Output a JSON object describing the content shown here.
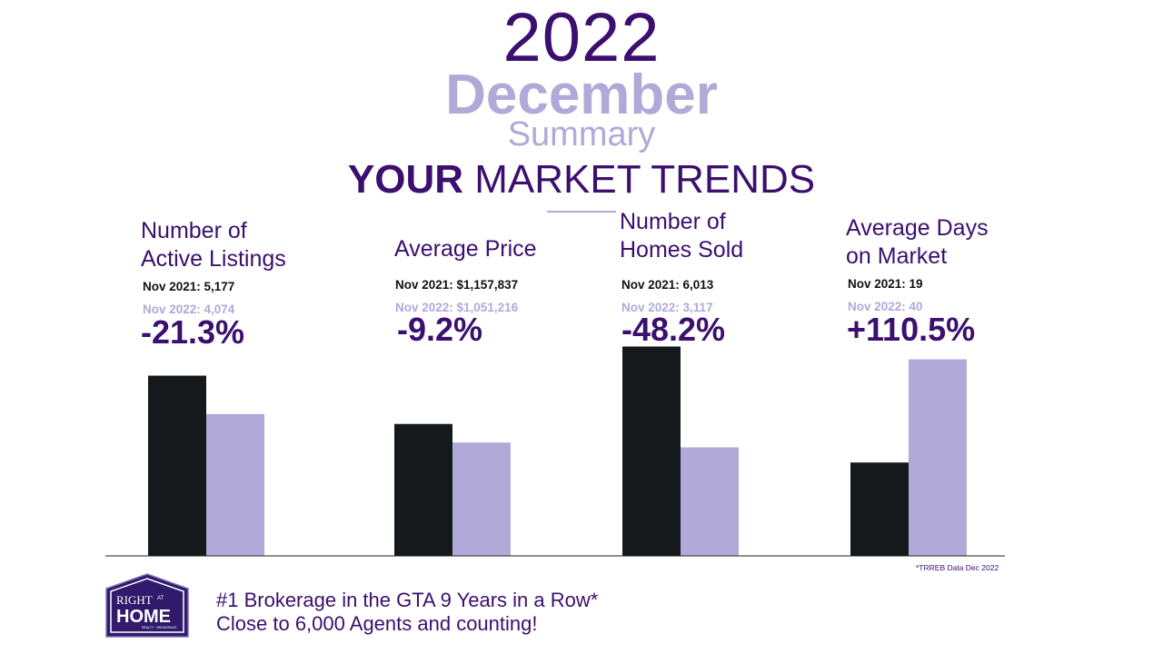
{
  "header": {
    "year": "2022",
    "month": "December",
    "subtitle": "Summary",
    "trends_bold": "YOUR",
    "trends_rest": "MARKET TRENDS"
  },
  "chart_data": {
    "type": "bar",
    "series_colors": {
      "nov_2021": "#15191c",
      "nov_2022": "#b1a9d8"
    },
    "panels": [
      {
        "title_line1": "Number of",
        "title_line2": "Active Listings",
        "prev_label": "Nov 2021: 5,177",
        "curr_label": "Nov  2022: 4,074",
        "change": "-21.3%",
        "values": [
          5177,
          4074
        ],
        "ylim": [
          0,
          6000
        ]
      },
      {
        "title_line1": "Average Price",
        "title_line2": "",
        "prev_label": "Nov 2021: $1,157,837",
        "curr_label": "Nov  2022: $1,051,216",
        "change": "-9.2%",
        "values": [
          1157837,
          1051216
        ],
        "ylim": [
          400000,
          1600000
        ]
      },
      {
        "title_line1": "Number of",
        "title_line2": "Homes Sold",
        "prev_label": "Nov 2021: 6,013",
        "curr_label": "Nov  2022: 3,117",
        "change": "-48.2%",
        "values": [
          6013,
          3117
        ],
        "ylim": [
          0,
          6000
        ]
      },
      {
        "title_line1": "Average Days",
        "title_line2": "on Market",
        "prev_label": "Nov 2021: 19",
        "curr_label": "Nov  2022: 40",
        "change": "+110.5%",
        "values": [
          19,
          40
        ],
        "ylim": [
          0,
          42.5
        ]
      }
    ]
  },
  "footer": {
    "source_note": "*TRREB Data Dec 2022",
    "tagline_line1": "#1 Brokerage in the GTA 9 Years in a Row*",
    "tagline_line2": "Close to 6,000 Agents and counting!",
    "logo": {
      "text_right": "RIGHT",
      "text_at": "AT",
      "text_home": "HOME",
      "text_small": "REALTY · BROKERAGE"
    }
  }
}
